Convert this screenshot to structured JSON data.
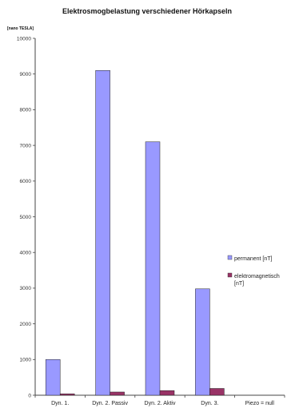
{
  "chart_data": {
    "type": "bar",
    "title": "Elektrosmogbelastung  verschiedener Hörkapseln",
    "ylabel": "[nano TESLA]",
    "xlabel": "",
    "ylim": [
      0,
      10000
    ],
    "yticks": [
      0,
      1000,
      2000,
      3000,
      4000,
      5000,
      6000,
      7000,
      8000,
      9000,
      10000
    ],
    "grid": false,
    "legend_position": "right",
    "categories": [
      "Dyn. 1.",
      "Dyn. 2. Passiv",
      "Dyn. 2. Aktiv",
      "Dyn. 3.",
      "Piezo = null"
    ],
    "series": [
      {
        "name": "permanent [nT]",
        "color": "#9999ff",
        "values": [
          1000,
          9100,
          7100,
          2980,
          0
        ]
      },
      {
        "name": "elektromagnetisch [nT]",
        "color": "#993366",
        "values": [
          40,
          90,
          130,
          190,
          0
        ]
      }
    ],
    "legend": {
      "line1": "permanent [nT]",
      "line2a": "elektromagnetisch",
      "line2b": "[nT]"
    }
  }
}
